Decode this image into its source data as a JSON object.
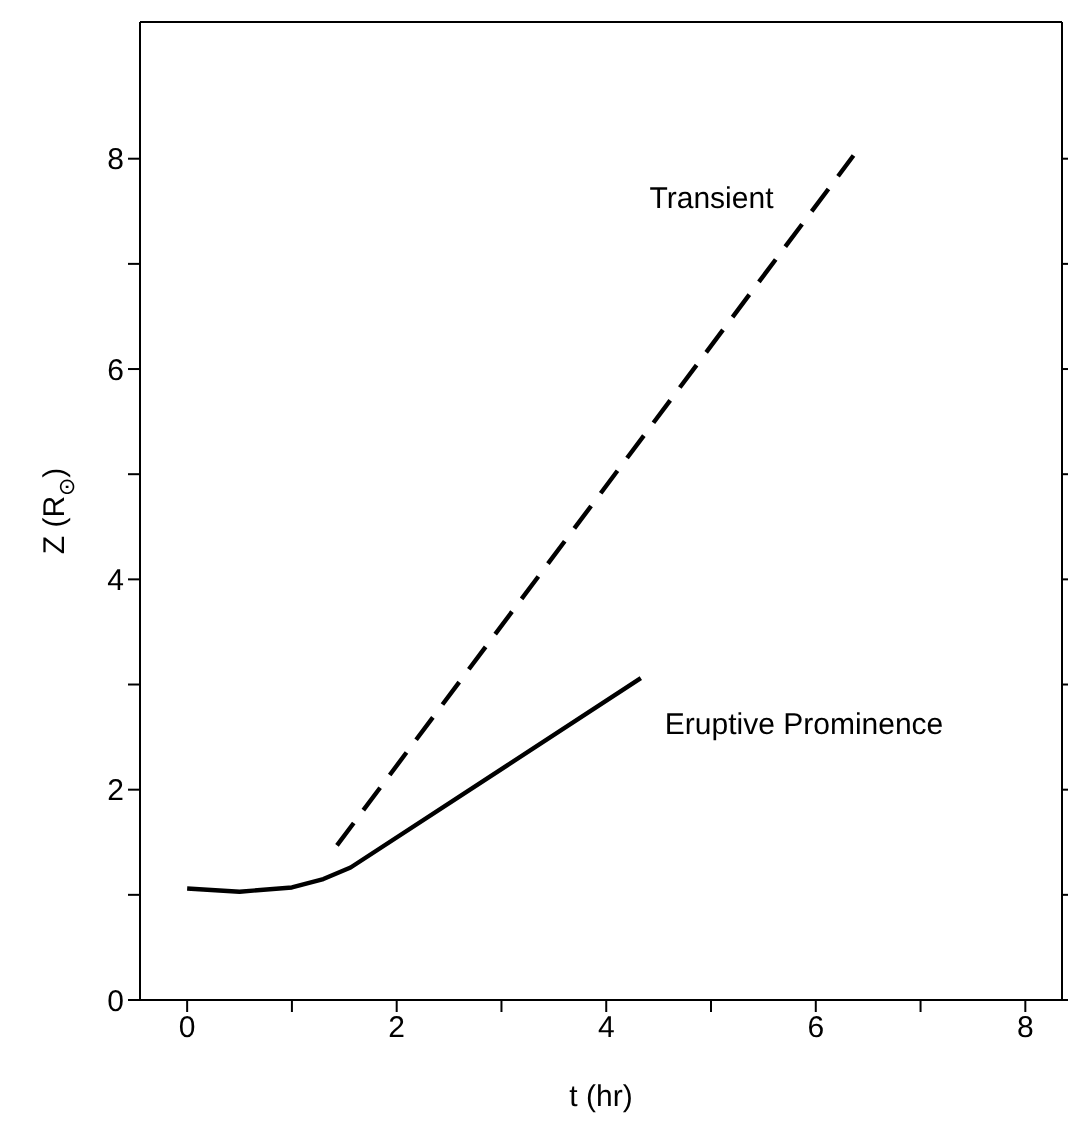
{
  "chart_data": {
    "type": "line",
    "xlabel": "t (hr)",
    "ylabel": "Z (R$_{⊙}$)",
    "xlim": [
      -0.45,
      8.35
    ],
    "ylim": [
      0,
      9.3
    ],
    "xticks": [
      0,
      {
        "value": 1,
        "label": null
      },
      2,
      {
        "value": 3,
        "label": null
      },
      4,
      {
        "value": 5,
        "label": null
      },
      6,
      {
        "value": 7,
        "label": null
      },
      8
    ],
    "yticks": [
      0,
      {
        "value": 1,
        "label": null
      },
      2,
      {
        "value": 3,
        "label": null
      },
      4,
      {
        "value": 5,
        "label": null
      },
      6,
      {
        "value": 7,
        "label": null
      },
      8
    ],
    "marker": "none",
    "series": [
      {
        "name": "Transient",
        "color": "#000000",
        "line_style": "dashed",
        "x": [
          1.43,
          6.36
        ],
        "values": [
          1.47,
          8.03
        ]
      },
      {
        "name": "Eruptive Prominence",
        "color": "#000000",
        "line_style": "solid",
        "x": [
          0,
          0.5,
          1,
          1.3,
          1.56,
          4.33
        ],
        "values": [
          1.06,
          1.03,
          1.07,
          1.15,
          1.26,
          3.06
        ]
      }
    ]
  }
}
